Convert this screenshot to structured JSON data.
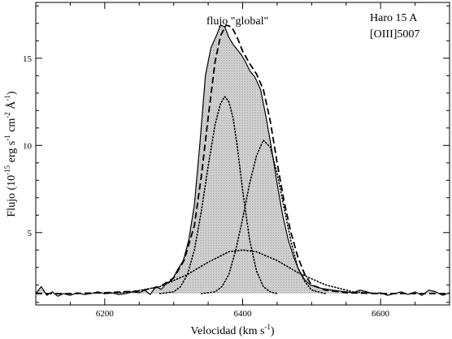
{
  "chart_data": {
    "type": "line",
    "xlabel": "Velocidad (km s",
    "xlabel_sup": "-1",
    "xlabel_close": ")",
    "ylabel_parts": {
      "prefix": "Flujo (10",
      "exp1": "-15",
      "mid1": " erg s",
      "exp2": "-1",
      "mid2": " cm",
      "exp3": "-2",
      "mid3": " Å",
      "exp4": "-1",
      "close": ")"
    },
    "xlim": [
      6100,
      6700
    ],
    "ylim": [
      0.85,
      18.2
    ],
    "x_ticks": [
      6200,
      6400,
      6600
    ],
    "x_tick_labels": [
      "6200",
      "6400",
      "6600"
    ],
    "y_ticks": [
      5,
      10,
      15
    ],
    "y_tick_labels": [
      "5",
      "10",
      "15"
    ],
    "annotations": {
      "center": "flujo \"global\"",
      "object": "Haro 15 A",
      "line": "[OIII]5007"
    },
    "continuum": 1.5,
    "series": [
      {
        "style": "solid",
        "x": [
          6100,
          6108,
          6116,
          6124,
          6132,
          6140,
          6150,
          6160,
          6170,
          6180,
          6190,
          6200,
          6210,
          6220,
          6230,
          6240,
          6250,
          6258,
          6266,
          6274,
          6282,
          6290,
          6298,
          6306,
          6314,
          6322,
          6330,
          6338,
          6346,
          6354,
          6362,
          6368,
          6374,
          6380,
          6386,
          6392,
          6398,
          6404,
          6410,
          6418,
          6426,
          6434,
          6442,
          6450,
          6458,
          6466,
          6474,
          6482,
          6490,
          6498,
          6506,
          6514,
          6522,
          6530,
          6540,
          6550,
          6560,
          6570,
          6580,
          6590,
          6600,
          6610,
          6620,
          6630,
          6640,
          6650,
          6660,
          6670,
          6680,
          6690,
          6700
        ],
        "y": [
          1.5,
          1.9,
          1.4,
          1.6,
          1.35,
          1.5,
          1.4,
          1.55,
          1.45,
          1.5,
          1.6,
          1.5,
          1.55,
          1.45,
          1.5,
          1.6,
          1.55,
          1.7,
          1.45,
          1.9,
          1.75,
          2.1,
          2.3,
          2.9,
          3.4,
          4.6,
          6.6,
          10.1,
          14.0,
          15.6,
          16.3,
          16.9,
          16.8,
          16.2,
          15.8,
          15.5,
          15.2,
          14.8,
          14.3,
          13.9,
          13.2,
          11.6,
          9.8,
          7.8,
          6.0,
          4.6,
          3.6,
          2.8,
          2.3,
          2.0,
          1.9,
          1.8,
          1.75,
          1.7,
          1.65,
          1.6,
          1.55,
          1.7,
          1.6,
          1.5,
          1.55,
          1.4,
          1.5,
          1.6,
          1.45,
          1.6,
          1.4,
          1.7,
          1.6,
          1.4,
          1.55
        ]
      },
      {
        "style": "dashed",
        "x": [
          6100,
          6150,
          6200,
          6250,
          6280,
          6300,
          6315,
          6330,
          6340,
          6350,
          6360,
          6368,
          6376,
          6384,
          6392,
          6400,
          6410,
          6420,
          6430,
          6440,
          6450,
          6460,
          6470,
          6480,
          6490,
          6500,
          6520,
          6550,
          6600,
          6650,
          6700
        ],
        "y": [
          1.5,
          1.5,
          1.55,
          1.65,
          1.9,
          2.4,
          3.4,
          5.4,
          8.2,
          11.6,
          14.8,
          16.3,
          16.9,
          16.8,
          16.2,
          15.4,
          14.7,
          14.1,
          13.2,
          11.4,
          9.0,
          6.8,
          5.0,
          3.6,
          2.6,
          2.0,
          1.7,
          1.55,
          1.5,
          1.5,
          1.5
        ]
      },
      {
        "style": "dotted",
        "x": [
          6280,
          6300,
          6310,
          6320,
          6330,
          6340,
          6350,
          6360,
          6368,
          6374,
          6380,
          6386,
          6392,
          6400,
          6410,
          6420,
          6430,
          6440,
          6450
        ],
        "y": [
          1.5,
          1.6,
          1.9,
          2.6,
          4.0,
          6.2,
          8.8,
          11.2,
          12.4,
          12.8,
          12.5,
          11.6,
          10.0,
          7.4,
          4.6,
          2.8,
          1.9,
          1.6,
          1.5
        ]
      },
      {
        "style": "dotted",
        "x": [
          6340,
          6360,
          6370,
          6380,
          6390,
          6400,
          6410,
          6420,
          6430,
          6440,
          6450,
          6460,
          6470,
          6480,
          6490,
          6500,
          6520
        ],
        "y": [
          1.5,
          1.6,
          1.9,
          2.6,
          4.0,
          5.8,
          7.8,
          9.4,
          10.3,
          9.9,
          8.4,
          6.4,
          4.5,
          3.0,
          2.2,
          1.7,
          1.5
        ]
      },
      {
        "style": "dotted",
        "x": [
          6200,
          6240,
          6280,
          6320,
          6350,
          6380,
          6400,
          6420,
          6450,
          6480,
          6520,
          6560,
          6600
        ],
        "y": [
          1.5,
          1.6,
          1.9,
          2.6,
          3.3,
          3.9,
          4.0,
          3.9,
          3.4,
          2.7,
          2.0,
          1.6,
          1.5
        ]
      }
    ]
  }
}
